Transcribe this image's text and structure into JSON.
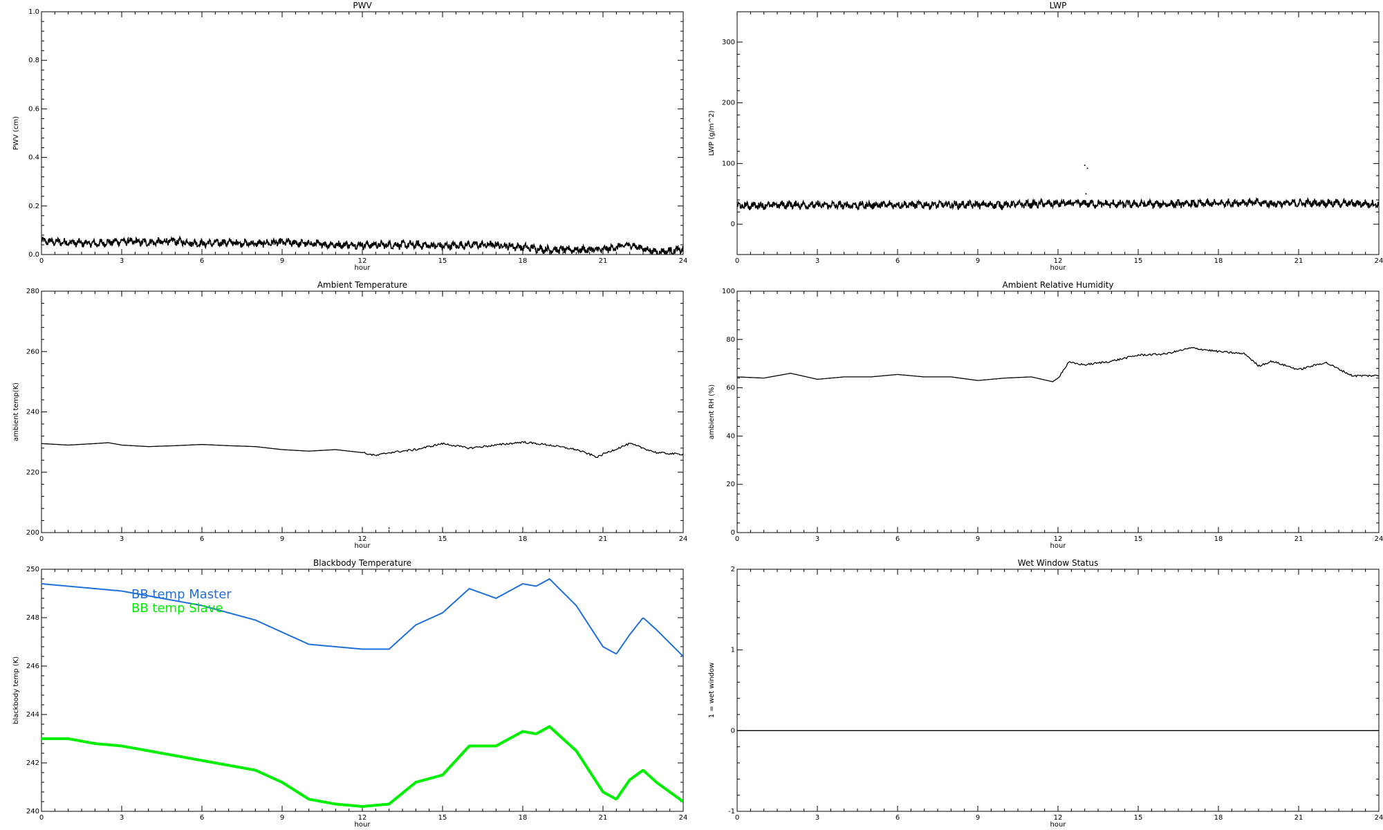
{
  "chart_data": [
    {
      "id": "pwv",
      "type": "line",
      "title": "PWV",
      "xlabel": "hour",
      "ylabel": "PWV (cm)",
      "xlim": [
        0,
        24
      ],
      "ylim": [
        0.0,
        1.0
      ],
      "xticks": [
        "0",
        "3",
        "6",
        "9",
        "12",
        "15",
        "18",
        "21",
        "24"
      ],
      "yticks": [
        "0.0",
        "0.2",
        "0.4",
        "0.6",
        "0.8",
        "1.0"
      ],
      "noisy": true,
      "series": [
        {
          "color": "#000000",
          "x": [
            0,
            1,
            2,
            3,
            4,
            5,
            6,
            7,
            8,
            9,
            10,
            11,
            12,
            13,
            14,
            15,
            16,
            17,
            18,
            19,
            20,
            21,
            22,
            23,
            24
          ],
          "y": [
            0.055,
            0.05,
            0.045,
            0.055,
            0.05,
            0.055,
            0.045,
            0.05,
            0.045,
            0.05,
            0.045,
            0.04,
            0.04,
            0.04,
            0.04,
            0.035,
            0.04,
            0.04,
            0.03,
            0.02,
            0.02,
            0.02,
            0.04,
            0.01,
            0.02
          ]
        }
      ]
    },
    {
      "id": "lwp",
      "type": "line",
      "title": "LWP",
      "xlabel": "hour",
      "ylabel": "LWP (g/m^2)",
      "xlim": [
        0,
        24
      ],
      "ylim": [
        -50,
        350
      ],
      "xticks": [
        "0",
        "3",
        "6",
        "9",
        "12",
        "15",
        "18",
        "21",
        "24"
      ],
      "yticks": [
        "0",
        "100",
        "200",
        "300"
      ],
      "ytick_values": [
        0,
        100,
        200,
        300
      ],
      "noisy": true,
      "series": [
        {
          "color": "#000000",
          "x": [
            0,
            2,
            4,
            6,
            8,
            10,
            12,
            13,
            14,
            16,
            18,
            19,
            20,
            22,
            23,
            24
          ],
          "y": [
            30,
            32,
            31,
            32,
            32,
            32,
            34,
            34,
            33,
            33,
            34,
            36,
            34,
            35,
            34,
            33
          ]
        }
      ],
      "outliers": [
        [
          13.0,
          97
        ],
        [
          13.1,
          92
        ],
        [
          13.05,
          50
        ]
      ]
    },
    {
      "id": "ambient_temp",
      "type": "line",
      "title": "Ambient Temperature",
      "xlabel": "hour",
      "ylabel": "ambient temp(K)",
      "xlim": [
        0,
        24
      ],
      "ylim": [
        200,
        280
      ],
      "xticks": [
        "0",
        "3",
        "6",
        "9",
        "12",
        "15",
        "18",
        "21",
        "24"
      ],
      "yticks": [
        "200",
        "220",
        "240",
        "260",
        "280"
      ],
      "ytick_values": [
        200,
        220,
        240,
        260,
        280
      ],
      "series": [
        {
          "color": "#000000",
          "x": [
            0,
            1,
            2,
            2.5,
            3,
            4,
            5,
            6,
            7,
            8,
            9,
            10,
            11,
            12,
            12.5,
            13,
            14,
            15,
            16,
            17,
            18,
            19,
            20,
            20.8,
            21,
            22,
            23,
            23.8,
            24
          ],
          "y": [
            229.5,
            229,
            229.5,
            229.8,
            229,
            228.5,
            228.8,
            229.2,
            228.8,
            228.5,
            227.5,
            227,
            227.5,
            226.5,
            225.5,
            226.5,
            227.5,
            229.5,
            228,
            229,
            230,
            229,
            227.5,
            225,
            226,
            229.5,
            226.5,
            226,
            226
          ]
        }
      ],
      "outliers": [
        [
          13.0,
          201.5
        ]
      ]
    },
    {
      "id": "ambient_rh",
      "type": "line",
      "title": "Ambient Relative Humidity",
      "xlabel": "hour",
      "ylabel": "ambient RH (%)",
      "xlim": [
        0,
        24
      ],
      "ylim": [
        0,
        100
      ],
      "xticks": [
        "0",
        "3",
        "6",
        "9",
        "12",
        "15",
        "18",
        "21",
        "24"
      ],
      "yticks": [
        "0",
        "20",
        "40",
        "60",
        "80",
        "100"
      ],
      "ytick_values": [
        0,
        20,
        40,
        60,
        80,
        100
      ],
      "series": [
        {
          "color": "#000000",
          "x": [
            0,
            1,
            2,
            3,
            4,
            5,
            6,
            7,
            8,
            9,
            10,
            11,
            11.8,
            12,
            12.4,
            13,
            14,
            15,
            16,
            17,
            18,
            19,
            19.5,
            20,
            21,
            22,
            23,
            24
          ],
          "y": [
            64.5,
            64,
            66,
            63.5,
            64.5,
            64.5,
            65.5,
            64.5,
            64.5,
            63,
            64,
            64.5,
            62.5,
            64,
            70.5,
            69.5,
            71,
            73.5,
            74,
            76.5,
            75,
            74,
            69,
            71,
            67.5,
            70.5,
            65,
            65
          ]
        }
      ]
    },
    {
      "id": "bb_temp",
      "type": "line",
      "title": "Blackbody Temperature",
      "xlabel": "hour",
      "ylabel": "blackbody temp (K)",
      "xlim": [
        0,
        24
      ],
      "ylim": [
        240,
        250
      ],
      "xticks": [
        "0",
        "3",
        "6",
        "9",
        "12",
        "15",
        "18",
        "21",
        "24"
      ],
      "yticks": [
        "240",
        "242",
        "244",
        "246",
        "248",
        "250"
      ],
      "ytick_values": [
        240,
        242,
        244,
        246,
        248,
        250
      ],
      "series": [
        {
          "name": "BB temp Master",
          "color": "#1e6fdc",
          "x": [
            0,
            1,
            2,
            3,
            4,
            5,
            6,
            7,
            8,
            9,
            10,
            11,
            12,
            13,
            14,
            15,
            16,
            17,
            18,
            18.5,
            19,
            20,
            21,
            21.5,
            22,
            22.5,
            23,
            24
          ],
          "y": [
            249.4,
            249.3,
            249.2,
            249.1,
            248.9,
            248.7,
            248.5,
            248.2,
            247.9,
            247.4,
            246.9,
            246.8,
            246.7,
            246.7,
            247.7,
            248.2,
            249.2,
            248.8,
            249.4,
            249.3,
            249.6,
            248.5,
            246.8,
            246.5,
            247.3,
            248,
            247.5,
            246.4
          ]
        },
        {
          "name": "BB temp Slave",
          "color": "#00ee00",
          "x": [
            0,
            1,
            2,
            3,
            4,
            5,
            6,
            7,
            8,
            9,
            10,
            11,
            12,
            13,
            14,
            15,
            16,
            17,
            18,
            18.5,
            19,
            20,
            21,
            21.5,
            22,
            22.5,
            23,
            24
          ],
          "y": [
            243.0,
            243.0,
            242.8,
            242.7,
            242.5,
            242.3,
            242.1,
            241.9,
            241.7,
            241.2,
            240.5,
            240.3,
            240.2,
            240.3,
            241.2,
            241.5,
            242.7,
            242.7,
            243.3,
            243.2,
            243.5,
            242.5,
            240.8,
            240.5,
            241.3,
            241.7,
            241.2,
            240.4
          ]
        }
      ]
    },
    {
      "id": "wet_window",
      "type": "line",
      "title": "Wet Window Status",
      "xlabel": "hour",
      "ylabel": "1 = wet window",
      "xlim": [
        0,
        24
      ],
      "ylim": [
        -1,
        2
      ],
      "xticks": [
        "0",
        "3",
        "6",
        "9",
        "12",
        "15",
        "18",
        "21",
        "24"
      ],
      "yticks": [
        "-1",
        "0",
        "1",
        "2"
      ],
      "ytick_values": [
        -1,
        0,
        1,
        2
      ],
      "series": [
        {
          "color": "#000000",
          "x": [
            0,
            24
          ],
          "y": [
            0,
            0
          ]
        }
      ]
    }
  ]
}
